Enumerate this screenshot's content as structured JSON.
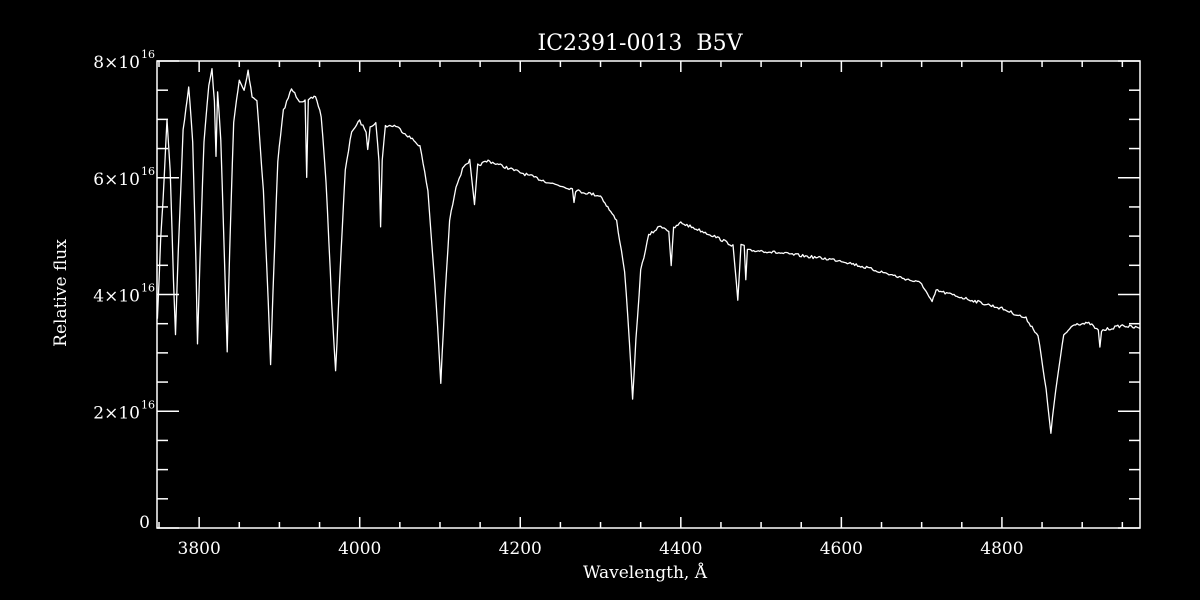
{
  "chart_data": {
    "type": "line",
    "title": "IC2391-0013  B5V",
    "xlabel": "Wavelength, Å",
    "ylabel": "Relative flux",
    "xlim": [
      3747.5,
      4972
    ],
    "ylim": [
      0,
      8e+16
    ],
    "x_ticks": [
      3800,
      4000,
      4200,
      4400,
      4600,
      4800
    ],
    "x_tick_labels": [
      "3800",
      "4000",
      "4200",
      "4400",
      "4600",
      "4800"
    ],
    "y_ticks": [
      0,
      2e+16,
      4e+16,
      6e+16,
      8e+16
    ],
    "y_tick_labels": [
      {
        "mant": "0",
        "exp": ""
      },
      {
        "mant": "2×10",
        "exp": "16"
      },
      {
        "mant": "4×10",
        "exp": "16"
      },
      {
        "mant": "6×10",
        "exp": "16"
      },
      {
        "mant": "8×10",
        "exp": "16"
      }
    ],
    "x_minor_step": 50,
    "y_minor_step": 5000000000000000.0,
    "grid": false,
    "colors": {
      "background": "#000000",
      "line": "#ffffff",
      "axes": "#ffffff"
    },
    "series": [
      {
        "x": [
          3748,
          3752,
          3755,
          3760,
          3764,
          3768,
          3770.5,
          3774,
          3780,
          3787,
          3792,
          3796,
          3798,
          3801,
          3806,
          3812,
          3816,
          3819,
          3821,
          3823,
          3827,
          3832,
          3835,
          3838,
          3843,
          3850,
          3856,
          3861,
          3866,
          3872,
          3880,
          3886,
          3889,
          3892,
          3898,
          3905,
          3915,
          3925,
          3932,
          3934,
          3936,
          3945,
          3952,
          3958,
          3965,
          3970,
          3975,
          3982,
          3990,
          4000,
          4008,
          4010,
          4013,
          4020,
          4024,
          4026,
          4028,
          4032,
          4045,
          4060,
          4075,
          4085,
          4095,
          4101,
          4106,
          4112,
          4120,
          4130,
          4137,
          4143,
          4147,
          4160,
          4200,
          4240,
          4265,
          4267,
          4269,
          4300,
          4320,
          4330,
          4336,
          4340,
          4344,
          4350,
          4360,
          4375,
          4385,
          4388,
          4391,
          4400,
          4440,
          4465,
          4471,
          4475,
          4479,
          4481,
          4483,
          4500,
          4600,
          4700,
          4713,
          4718,
          4800,
          4830,
          4845,
          4855,
          4861,
          4867,
          4877,
          4890,
          4910,
          4920,
          4922,
          4924,
          4950,
          4972
        ],
        "y": [
          3.56e+16,
          4.92e+16,
          5.61e+16,
          7.01e+16,
          6.12e+16,
          4.24e+16,
          3.33e+16,
          4.75e+16,
          6.8e+16,
          7.57e+16,
          6.63e+16,
          4.58e+16,
          3.16e+16,
          4.58e+16,
          6.63e+16,
          7.57e+16,
          7.86e+16,
          7.32e+16,
          6.38e+16,
          7.49e+16,
          6.63e+16,
          4.41e+16,
          3.04e+16,
          4.75e+16,
          6.97e+16,
          7.66e+16,
          7.49e+16,
          7.83e+16,
          7.4e+16,
          7.32e+16,
          5.78e+16,
          3.9e+16,
          2.79e+16,
          4.07e+16,
          6.29e+16,
          7.15e+16,
          7.52e+16,
          7.32e+16,
          7.32e+16,
          5.98e+16,
          7.32e+16,
          7.4e+16,
          7.06e+16,
          5.95e+16,
          3.9e+16,
          2.67e+16,
          4.24e+16,
          6.12e+16,
          6.8e+16,
          6.97e+16,
          6.8e+16,
          6.46e+16,
          6.89e+16,
          6.94e+16,
          6.29e+16,
          5.18e+16,
          6.29e+16,
          6.89e+16,
          6.89e+16,
          6.72e+16,
          6.55e+16,
          5.78e+16,
          3.9e+16,
          2.48e+16,
          3.9e+16,
          5.26e+16,
          5.86e+16,
          6.21e+16,
          6.29e+16,
          5.52e+16,
          6.21e+16,
          6.29e+16,
          6.09e+16,
          5.9e+16,
          5.81e+16,
          5.6e+16,
          5.78e+16,
          5.69e+16,
          5.26e+16,
          4.41e+16,
          3.21e+16,
          2.19e+16,
          3.21e+16,
          4.41e+16,
          5.01e+16,
          5.18e+16,
          5.09e+16,
          4.5e+16,
          5.13e+16,
          5.23e+16,
          5.01e+16,
          4.84e+16,
          3.9e+16,
          4.84e+16,
          4.84e+16,
          4.24e+16,
          4.75e+16,
          4.75e+16,
          4.58e+16,
          4.19e+16,
          3.86e+16,
          4.07e+16,
          3.76e+16,
          3.59e+16,
          3.3e+16,
          2.36e+16,
          1.64e+16,
          2.36e+16,
          3.3e+16,
          3.5e+16,
          3.5e+16,
          3.38e+16,
          3.08e+16,
          3.38e+16,
          3.47e+16,
          3.42e+16
        ]
      }
    ]
  }
}
